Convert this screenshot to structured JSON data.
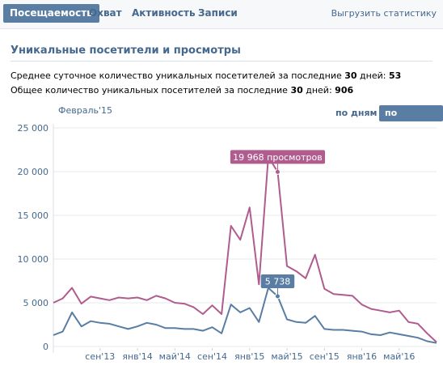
{
  "tabs": [
    {
      "label": "Посещаемость",
      "active": true
    },
    {
      "label": "Охват",
      "active": false
    },
    {
      "label": "Активность",
      "active": false
    },
    {
      "label": "Записи",
      "active": false
    }
  ],
  "export_label": "Выгрузить статистику",
  "section_title": "Уникальные посетители и просмотры",
  "stats": {
    "avg_prefix": "Среднее суточное количество уникальных посетителей за последние ",
    "avg_days": "30",
    "avg_mid": " дней: ",
    "avg_value": "53",
    "total_prefix": "Общее количество уникальных посетителей за последние ",
    "total_days": "30",
    "total_mid": " дней: ",
    "total_value": "906"
  },
  "period_label": "Февраль'15",
  "mode_buttons": {
    "by_days": "по дням",
    "by_months": "по месяцам"
  },
  "colors": {
    "views": "#b05c8e",
    "visitors": "#597da3",
    "accent": "#597da3"
  },
  "chart_data": {
    "type": "line",
    "ylim": [
      0,
      25000
    ],
    "yticks": [
      0,
      5000,
      10000,
      15000,
      20000,
      25000
    ],
    "ytick_labels": [
      "0",
      "5 000",
      "10 000",
      "15 000",
      "20 000",
      "25 000"
    ],
    "xtick_labels": [
      "сен'13",
      "янв'14",
      "май'14",
      "сен'14",
      "янв'15",
      "май'15",
      "сен'15",
      "янв'16",
      "май'16"
    ],
    "xtick_index": [
      5,
      9,
      13,
      17,
      21,
      25,
      29,
      33,
      37
    ],
    "series": [
      {
        "key": "views",
        "values": [
          5000,
          5500,
          6700,
          4900,
          5700,
          5500,
          5300,
          5600,
          5500,
          5600,
          5300,
          5800,
          5500,
          5000,
          4900,
          4500,
          3700,
          4700,
          3700,
          13800,
          12200,
          15900,
          7100,
          21700,
          19968,
          9200,
          8600,
          7800,
          10500,
          6600,
          6000,
          5900,
          5800,
          4800,
          4300,
          4100,
          3900,
          4100,
          2800,
          2600,
          1500,
          500
        ]
      },
      {
        "key": "visitors",
        "values": [
          1300,
          1700,
          3900,
          2300,
          2900,
          2700,
          2600,
          2300,
          2000,
          2300,
          2700,
          2500,
          2100,
          2100,
          2000,
          2000,
          1800,
          2200,
          1500,
          4800,
          3900,
          4400,
          2800,
          6700,
          5738,
          3100,
          2800,
          2700,
          3500,
          2000,
          1900,
          1900,
          1800,
          1700,
          1400,
          1300,
          1600,
          1400,
          1200,
          1000,
          600,
          400
        ]
      }
    ],
    "highlight_index": 24,
    "annotations": {
      "views": "19 968 просмотров",
      "visitors": "5 738"
    }
  }
}
